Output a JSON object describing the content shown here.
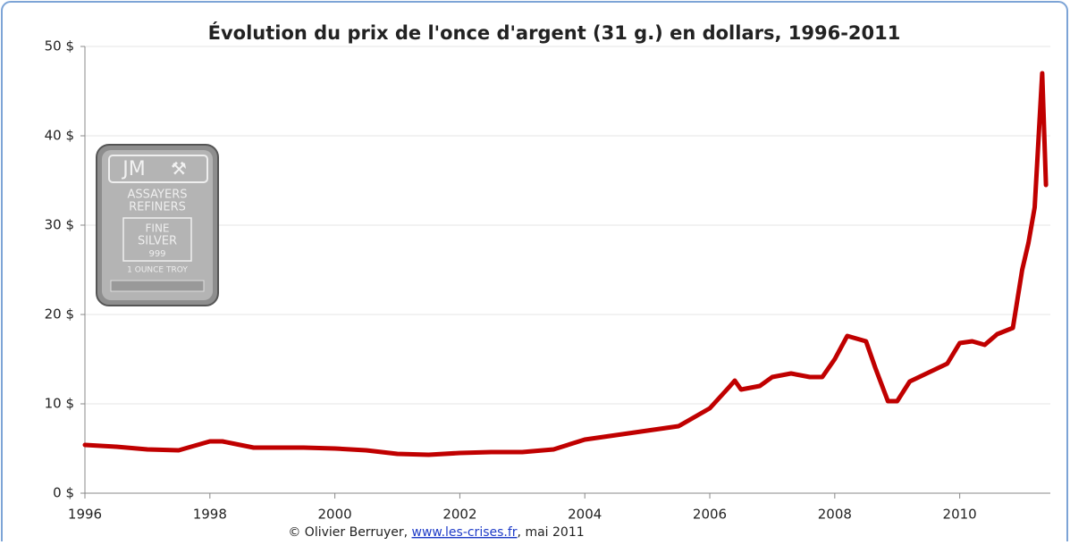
{
  "chart_data": {
    "type": "line",
    "title": "Évolution du prix de l'once d'argent (31 g.) en dollars, 1996-2011",
    "source": [
      "© Olivier Berruyer, ",
      "www.les-crises.fr",
      ",  mai 2011"
    ],
    "illustration_text": [
      "JM",
      "ASSAYERS",
      "REFINERS",
      "FINE",
      "SILVER",
      "999",
      "1 OUNCE TROY"
    ],
    "x": [
      1996,
      1996.5,
      1997,
      1997.5,
      1998,
      1998.2,
      1998.7,
      1999.5,
      2000,
      2000.5,
      2001,
      2001.5,
      2002,
      2002.5,
      2003,
      2003.5,
      2004,
      2004.5,
      2005,
      2005.5,
      2006,
      2006.3,
      2006.4,
      2006.5,
      2006.8,
      2007,
      2007.3,
      2007.6,
      2007.8,
      2008,
      2008.2,
      2008.5,
      2008.65,
      2008.85,
      2009,
      2009.2,
      2009.5,
      2009.8,
      2010,
      2010.2,
      2010.4,
      2010.6,
      2010.85,
      2011,
      2011.1,
      2011.2,
      2011.32,
      2011.38
    ],
    "values": [
      5.4,
      5.2,
      4.9,
      4.8,
      5.8,
      5.8,
      5.1,
      5.1,
      5.0,
      4.8,
      4.4,
      4.3,
      4.5,
      4.6,
      4.6,
      4.9,
      6.0,
      6.5,
      7.0,
      7.5,
      9.5,
      11.8,
      12.6,
      11.6,
      12.0,
      13.0,
      13.4,
      13.0,
      13.0,
      15.0,
      17.6,
      17.0,
      14.0,
      10.3,
      10.3,
      12.5,
      13.5,
      14.5,
      16.8,
      17.0,
      16.6,
      17.8,
      18.5,
      25,
      28,
      32,
      47,
      34.5
    ],
    "color": "#c00000",
    "xlim": [
      1996,
      2011.45
    ],
    "xticks": [
      1996,
      1998,
      2000,
      2002,
      2004,
      2006,
      2008,
      2010
    ],
    "ylim": [
      0,
      50
    ],
    "yticks": [
      {
        "value": 0,
        "label": "0 $"
      },
      {
        "value": 10,
        "label": "10 $"
      },
      {
        "value": 20,
        "label": "20 $"
      },
      {
        "value": 30,
        "label": "30 $"
      },
      {
        "value": 40,
        "label": "40 $"
      },
      {
        "value": 50,
        "label": "50 $"
      }
    ],
    "grid": true
  }
}
